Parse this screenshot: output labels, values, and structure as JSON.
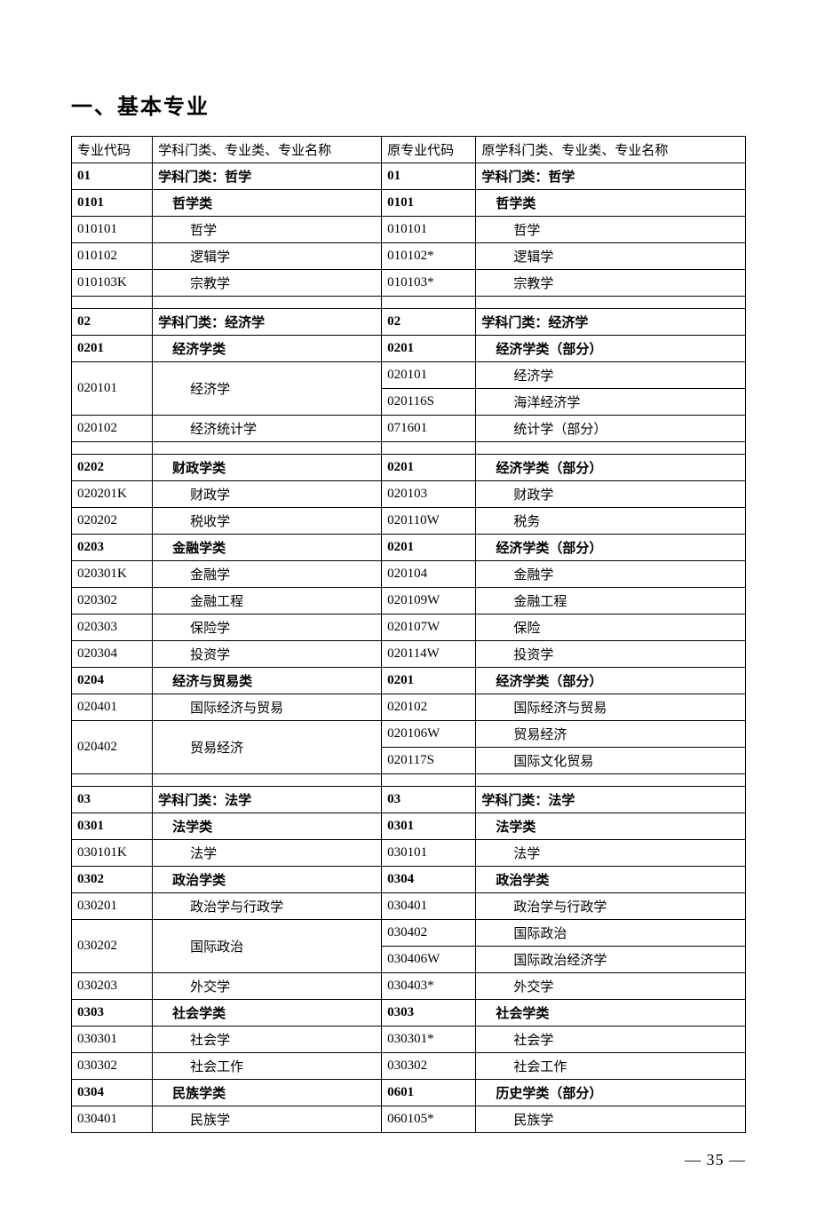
{
  "title": "一、基本专业",
  "page_number": "— 35 —",
  "headers": {
    "code_l": "专业代码",
    "name_l": "学科门类、专业类、专业名称",
    "code_r": "原专业代码",
    "name_r": "原学科门类、专业类、专业名称"
  },
  "rows": [
    {
      "type": "bold",
      "cl": "01",
      "nl": "学科门类：哲学",
      "cr": "01",
      "nr": "学科门类：哲学",
      "nl_indent": 0,
      "nr_indent": 0
    },
    {
      "type": "bold",
      "cl": "0101",
      "nl": "哲学类",
      "cr": "0101",
      "nr": "哲学类",
      "nl_indent": 1,
      "nr_indent": 1
    },
    {
      "type": "normal",
      "cl": "010101",
      "nl": "哲学",
      "cr": "010101",
      "nr": "哲学",
      "nl_indent": 2,
      "nr_indent": 2
    },
    {
      "type": "normal",
      "cl": "010102",
      "nl": "逻辑学",
      "cr": "010102*",
      "nr": "逻辑学",
      "nl_indent": 2,
      "nr_indent": 2
    },
    {
      "type": "normal",
      "cl": "010103K",
      "nl": "宗教学",
      "cr": "010103*",
      "nr": "宗教学",
      "nl_indent": 2,
      "nr_indent": 2
    },
    {
      "type": "spacer"
    },
    {
      "type": "bold",
      "cl": "02",
      "nl": "学科门类：经济学",
      "cr": "02",
      "nr": "学科门类：经济学",
      "nl_indent": 0,
      "nr_indent": 0
    },
    {
      "type": "bold",
      "cl": "0201",
      "nl": "经济学类",
      "cr": "0201",
      "nr": "经济学类（部分）",
      "nl_indent": 1,
      "nr_indent": 1
    },
    {
      "type": "merge2",
      "cl": "020101",
      "nl": "经济学",
      "nl_indent": 2,
      "right": [
        {
          "cr": "020101",
          "nr": "经济学",
          "nr_indent": 2
        },
        {
          "cr": "020116S",
          "nr": "海洋经济学",
          "nr_indent": 2
        }
      ]
    },
    {
      "type": "normal",
      "cl": "020102",
      "nl": "经济统计学",
      "cr": "071601",
      "nr": "统计学（部分）",
      "nl_indent": 2,
      "nr_indent": 2
    },
    {
      "type": "spacer"
    },
    {
      "type": "bold",
      "cl": "0202",
      "nl": "财政学类",
      "cr": "0201",
      "nr": "经济学类（部分）",
      "nl_indent": 1,
      "nr_indent": 1
    },
    {
      "type": "normal",
      "cl": "020201K",
      "nl": "财政学",
      "cr": "020103",
      "nr": "财政学",
      "nl_indent": 2,
      "nr_indent": 2
    },
    {
      "type": "normal",
      "cl": "020202",
      "nl": "税收学",
      "cr": "020110W",
      "nr": "税务",
      "nl_indent": 2,
      "nr_indent": 2
    },
    {
      "type": "bold",
      "cl": "0203",
      "nl": "金融学类",
      "cr": "0201",
      "nr": "经济学类（部分）",
      "nl_indent": 1,
      "nr_indent": 1
    },
    {
      "type": "normal",
      "cl": "020301K",
      "nl": "金融学",
      "cr": "020104",
      "nr": "金融学",
      "nl_indent": 2,
      "nr_indent": 2
    },
    {
      "type": "normal",
      "cl": "020302",
      "nl": "金融工程",
      "cr": "020109W",
      "nr": "金融工程",
      "nl_indent": 2,
      "nr_indent": 2
    },
    {
      "type": "normal",
      "cl": "020303",
      "nl": "保险学",
      "cr": "020107W",
      "nr": "保险",
      "nl_indent": 2,
      "nr_indent": 2
    },
    {
      "type": "normal",
      "cl": "020304",
      "nl": "投资学",
      "cr": "020114W",
      "nr": "投资学",
      "nl_indent": 2,
      "nr_indent": 2
    },
    {
      "type": "bold",
      "cl": "0204",
      "nl": "经济与贸易类",
      "cr": "0201",
      "nr": "经济学类（部分）",
      "nl_indent": 1,
      "nr_indent": 1
    },
    {
      "type": "normal",
      "cl": "020401",
      "nl": "国际经济与贸易",
      "cr": "020102",
      "nr": "国际经济与贸易",
      "nl_indent": 2,
      "nr_indent": 2
    },
    {
      "type": "merge2",
      "cl": "020402",
      "nl": "贸易经济",
      "nl_indent": 2,
      "right": [
        {
          "cr": "020106W",
          "nr": "贸易经济",
          "nr_indent": 2
        },
        {
          "cr": "020117S",
          "nr": "国际文化贸易",
          "nr_indent": 2
        }
      ]
    },
    {
      "type": "spacer"
    },
    {
      "type": "bold",
      "cl": "03",
      "nl": "学科门类：法学",
      "cr": "03",
      "nr": "学科门类：法学",
      "nl_indent": 0,
      "nr_indent": 0
    },
    {
      "type": "bold",
      "cl": "0301",
      "nl": "法学类",
      "cr": "0301",
      "nr": "法学类",
      "nl_indent": 1,
      "nr_indent": 1
    },
    {
      "type": "normal",
      "cl": "030101K",
      "nl": "法学",
      "cr": "030101",
      "nr": "法学",
      "nl_indent": 2,
      "nr_indent": 2
    },
    {
      "type": "bold",
      "cl": "0302",
      "nl": "政治学类",
      "cr": "0304",
      "nr": "政治学类",
      "nl_indent": 1,
      "nr_indent": 1
    },
    {
      "type": "normal",
      "cl": "030201",
      "nl": "政治学与行政学",
      "cr": "030401",
      "nr": "政治学与行政学",
      "nl_indent": 2,
      "nr_indent": 2
    },
    {
      "type": "merge2",
      "cl": "030202",
      "nl": "国际政治",
      "nl_indent": 2,
      "right": [
        {
          "cr": "030402",
          "nr": "国际政治",
          "nr_indent": 2
        },
        {
          "cr": "030406W",
          "nr": "国际政治经济学",
          "nr_indent": 2
        }
      ]
    },
    {
      "type": "normal",
      "cl": "030203",
      "nl": "外交学",
      "cr": "030403*",
      "nr": "外交学",
      "nl_indent": 2,
      "nr_indent": 2
    },
    {
      "type": "bold",
      "cl": "0303",
      "nl": "社会学类",
      "cr": "0303",
      "nr": "社会学类",
      "nl_indent": 1,
      "nr_indent": 1
    },
    {
      "type": "normal",
      "cl": "030301",
      "nl": "社会学",
      "cr": "030301*",
      "nr": "社会学",
      "nl_indent": 2,
      "nr_indent": 2
    },
    {
      "type": "normal",
      "cl": "030302",
      "nl": "社会工作",
      "cr": "030302",
      "nr": "社会工作",
      "nl_indent": 2,
      "nr_indent": 2
    },
    {
      "type": "bold",
      "cl": "0304",
      "nl": "民族学类",
      "cr": "0601",
      "nr": "历史学类（部分）",
      "nl_indent": 1,
      "nr_indent": 1
    },
    {
      "type": "normal",
      "cl": "030401",
      "nl": "民族学",
      "cr": "060105*",
      "nr": "民族学",
      "nl_indent": 2,
      "nr_indent": 2
    }
  ]
}
